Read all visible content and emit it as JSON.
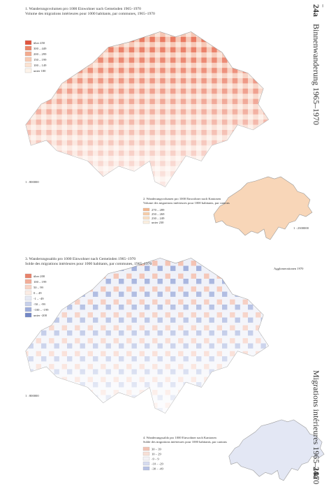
{
  "header": {
    "number": "24a",
    "marks": "**",
    "title_de": "Binnenwanderung 1965–1970",
    "title_fr": "Migrations intérieures 1965–1970"
  },
  "map1": {
    "title": "1. Wanderungsvolumen pro 1000 Einwohner nach Gemeinden 1965–1970",
    "subtitle": "Volume des migrations intérieures pour 1000 habitants, par communes, 1965–1970",
    "scale": "1 : 800000",
    "legend": [
      {
        "label": "über 450",
        "color": "#e0553f"
      },
      {
        "label": "300 – 449",
        "color": "#ec8466"
      },
      {
        "label": "200 – 299",
        "color": "#f3aa8e"
      },
      {
        "label": "150 – 199",
        "color": "#f8cbb4"
      },
      {
        "label": "100 – 149",
        "color": "#fbe3d2"
      },
      {
        "label": "unter 100",
        "color": "#fdf3ea"
      }
    ]
  },
  "map2": {
    "title": "2. Wanderungsvolumen pro 1000 Einwohner nach Kantonen",
    "subtitle": "Volume des migrations intérieures pour 1000 habitants, par cantons",
    "scale": "1 : 2300000",
    "legend": [
      {
        "label": "270 – 289",
        "color": "#f3b78f"
      },
      {
        "label": "250 – 269",
        "color": "#f7cda9"
      },
      {
        "label": "230 – 249",
        "color": "#fadfc4"
      },
      {
        "label": "unter 230",
        "color": "#fdf0e0"
      }
    ]
  },
  "map3": {
    "title": "3. Wanderungssaldo pro 1000 Einwohner nach Gemeinden 1965–1970",
    "subtitle": "Solde des migrations intérieures pour 1000 habitants, par communes, 1965–1970",
    "scale": "1 : 800000",
    "legend": [
      {
        "label": "über 200",
        "color": "#e8826a"
      },
      {
        "label": "100 – 199",
        "color": "#f2ad98"
      },
      {
        "label": "50 – 99",
        "color": "#f8d4c6"
      },
      {
        "label": "0 – 49",
        "color": "#fbece4"
      },
      {
        "label": "-1 – -49",
        "color": "#e6eaf5"
      },
      {
        "label": "-50 – -99",
        "color": "#c7d0ea"
      },
      {
        "label": "-100 – -199",
        "color": "#9eaddb"
      },
      {
        "label": "unter -200",
        "color": "#7286c6"
      }
    ],
    "note": "Agglomerationen 1970"
  },
  "map4": {
    "title": "4. Wanderungssaldo pro 1000 Einwohner nach Kantonen",
    "subtitle": "Solde des migrations intérieures pour 1000 habitants, par cantons",
    "legend": [
      {
        "label": "30 – 39",
        "color": "#f2c3b3"
      },
      {
        "label": "10 – 29",
        "color": "#f8e0d6"
      },
      {
        "label": "-9 – 9",
        "color": "#f3f2f6"
      },
      {
        "label": "-10 – -29",
        "color": "#d6dcef"
      },
      {
        "label": "-30 – -49",
        "color": "#b7c2e4"
      }
    ]
  }
}
